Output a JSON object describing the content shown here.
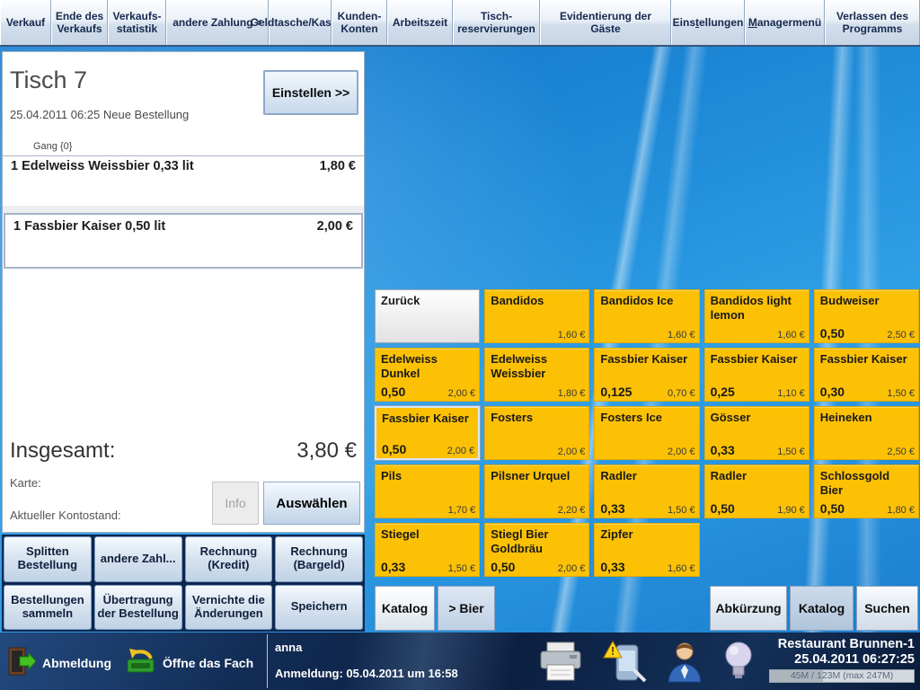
{
  "menubar": {
    "chevron_glyph": "»",
    "items": [
      {
        "label": "Verkauf"
      },
      {
        "label": "Ende des Verkaufs"
      },
      {
        "label": "Verkaufs-statistik"
      },
      {
        "label": "andere Zahlung",
        "chevron": true
      },
      {
        "label": "Geldtasche/Kassen"
      },
      {
        "label": "Kunden-Konten"
      },
      {
        "label": "Arbeitszeit"
      },
      {
        "label": "Tisch-reservierungen"
      },
      {
        "label": "Evidentierun_g der Gäste"
      },
      {
        "label": "Eins_tellungen"
      },
      {
        "label": "_Managermenü"
      },
      {
        "label": "Verlassen des Programms"
      }
    ]
  },
  "order_panel": {
    "title": "Tisch 7",
    "subtitle": "25.04.2011 06:25  Neue Bestellung",
    "einstellen_label": "Einstellen >>",
    "gang_label": "Gang {0}",
    "items": [
      {
        "name": "1 Edelweiss Weissbier 0,33 lit",
        "price": "1,80 €"
      },
      {
        "name": "1 Fassbier Kaiser 0,50 lit",
        "price": "2,00 €"
      }
    ],
    "total_label": "Insgesamt:",
    "total_value": "3,80 €",
    "karte_label": "Karte:",
    "kontostand_label": "Aktueller Kontostand:",
    "info_label": "Info",
    "auswaehlen_label": "Auswählen"
  },
  "action_buttons": [
    {
      "label": "Splitten Bestellung"
    },
    {
      "label": "andere Zahl..."
    },
    {
      "label": "Rechnung (Kredit)"
    },
    {
      "label": "Rechnung (Bargeld)"
    },
    {
      "label": "Bestellungen sammeln"
    },
    {
      "label": "Übertragung der Bestellung"
    },
    {
      "label": "Vernichte die Änderungen"
    },
    {
      "label": "Speichern"
    }
  ],
  "product_grid": {
    "cells": [
      {
        "type": "back",
        "label": "Zurück"
      },
      {
        "name": "Bandidos",
        "price": "1,60 €"
      },
      {
        "name": "Bandidos Ice",
        "price": "1,60 €"
      },
      {
        "name": "Bandidos light lemon",
        "price": "1,60 €"
      },
      {
        "name": "Budweiser",
        "size": "0,50",
        "price": "2,50 €"
      },
      {
        "name": "Edelweiss Dunkel",
        "size": "0,50",
        "price": "2,00 €"
      },
      {
        "name": "Edelweiss Weissbier",
        "price": "1,80 €"
      },
      {
        "name": "Fassbier Kaiser",
        "size": "0,125",
        "price": "0,70 €"
      },
      {
        "name": "Fassbier Kaiser",
        "size": "0,25",
        "price": "1,10 €"
      },
      {
        "name": "Fassbier Kaiser",
        "size": "0,30",
        "price": "1,50 €"
      },
      {
        "name": "Fassbier Kaiser",
        "size": "0,50",
        "price": "2,00 €",
        "selected": true
      },
      {
        "name": "Fosters",
        "price": "2,00 €"
      },
      {
        "name": "Fosters Ice",
        "price": "2,00 €"
      },
      {
        "name": "Gösser",
        "size": "0,33",
        "price": "1,50 €"
      },
      {
        "name": "Heineken",
        "price": "2,50 €"
      },
      {
        "name": "Pils",
        "price": "1,70 €"
      },
      {
        "name": "Pilsner Urquel",
        "price": "2,20 €"
      },
      {
        "name": "Radler",
        "size": "0,33",
        "price": "1,50 €"
      },
      {
        "name": "Radler",
        "size": "0,50",
        "price": "1,90 €"
      },
      {
        "name": "Schlossgold Bier",
        "size": "0,50",
        "price": "1,80 €"
      },
      {
        "name": "Stiegel",
        "size": "0,33",
        "price": "1,50 €"
      },
      {
        "name": "Stiegl Bier Goldbräu",
        "size": "0,50",
        "price": "2,00 €"
      },
      {
        "name": "Zipfer",
        "size": "0,33",
        "price": "1,60 €"
      },
      {
        "type": "empty"
      },
      {
        "type": "empty"
      }
    ]
  },
  "catalog_bar": {
    "left": [
      {
        "label": "Katalog"
      },
      {
        "label": "> Bier"
      }
    ],
    "right": [
      {
        "label": "Abkürzung"
      },
      {
        "label": "Katalog"
      },
      {
        "label": "Suchen"
      }
    ]
  },
  "statusbar": {
    "abmeldung_label": "Abmeldung",
    "drawer_label": "Öffne das Fach",
    "user": "anna",
    "anmeldung": "Anmeldung:  05.04.2011 um 16:58",
    "restaurant": "Restaurant Brunnen-1",
    "datetime": "25.04.2011 06:27:25",
    "memory": "45M / 123M (max 247M)"
  },
  "colors": {
    "product_button": "#fcc104",
    "wallpaper_blue": "#1e8ad8",
    "statusbar_navy": "#0b1f40",
    "menubar_silver": "#d3dfec"
  }
}
